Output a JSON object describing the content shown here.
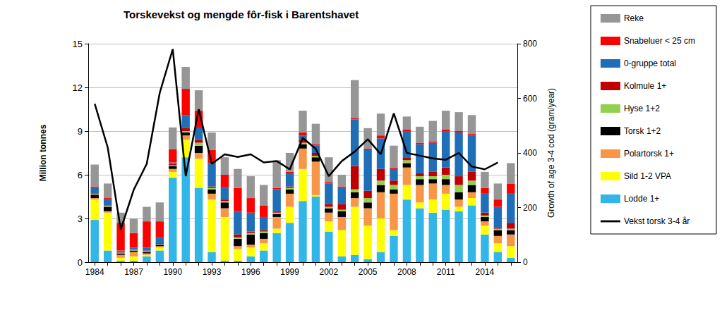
{
  "chart_data": {
    "type": "bar",
    "title": "Torskevekst og mengde fôr-fisk i Barentshavet",
    "y_label": "Million tonnes",
    "y2_label": "Growth of age 3-4 cod (gram/year)",
    "stacked": true,
    "grid": true,
    "legend": "right",
    "categories": [
      "1984",
      null,
      null,
      "1987",
      null,
      null,
      "1990",
      null,
      null,
      "1993",
      null,
      null,
      "1996",
      null,
      null,
      "1999",
      null,
      null,
      "2002",
      null,
      null,
      "2005",
      null,
      null,
      "2008",
      null,
      null,
      "2011",
      null,
      null,
      "2014",
      null,
      null
    ],
    "ylim": [
      0,
      15
    ],
    "yticks": [
      0,
      3,
      6,
      9,
      12,
      15
    ],
    "y2lim": [
      0,
      800
    ],
    "y2ticks": [
      0,
      200,
      400,
      600,
      800
    ],
    "series": [
      {
        "name": "Lodde 1+",
        "color": "#31b6e7",
        "values": [
          2.9,
          0.8,
          0.1,
          0.1,
          0.4,
          0.8,
          5.8,
          7.2,
          5.1,
          0.7,
          0.1,
          0.1,
          0.4,
          0.8,
          2.0,
          2.7,
          4.2,
          4.5,
          2.1,
          0.4,
          0.5,
          0.2,
          0.7,
          1.8,
          4.3,
          3.7,
          3.4,
          3.6,
          3.5,
          3.9,
          1.9,
          0.7,
          0.3
        ]
      },
      {
        "name": "Sild 1-2 VPA",
        "color": "#ffff00",
        "values": [
          1.4,
          2.6,
          0.2,
          0.3,
          0.1,
          0.2,
          0.4,
          1.2,
          2.0,
          3.6,
          3.0,
          0.8,
          0.6,
          0.5,
          0.3,
          1.1,
          2.2,
          0.1,
          0.7,
          1.8,
          3.3,
          2.3,
          2.3,
          0.4,
          1.0,
          0.4,
          0.9,
          1.1,
          0.3,
          0.5,
          0.6,
          0.6,
          0.8
        ]
      },
      {
        "name": "Polartorsk 1+",
        "color": "#f79646",
        "values": [
          0.1,
          0.1,
          0.2,
          0.3,
          0.1,
          0.1,
          0.2,
          0.3,
          0.4,
          0.4,
          0.6,
          0.2,
          0.2,
          0.3,
          0.8,
          0.9,
          1.4,
          2.3,
          0.6,
          0.9,
          0.6,
          1.2,
          1.8,
          2.5,
          1.2,
          1.2,
          1.1,
          0.6,
          0.5,
          0.4,
          0.3,
          0.5,
          0.8
        ]
      },
      {
        "name": "Torsk 1+2",
        "color": "#000000",
        "values": [
          0.2,
          0.3,
          0.1,
          0.1,
          0.1,
          0.1,
          0.2,
          0.2,
          0.5,
          0.3,
          0.4,
          0.5,
          0.7,
          0.4,
          0.2,
          0.3,
          0.3,
          0.3,
          0.3,
          0.4,
          0.4,
          0.4,
          0.5,
          0.3,
          0.3,
          0.4,
          0.3,
          0.4,
          0.5,
          0.5,
          0.3,
          0.4,
          0.3
        ]
      },
      {
        "name": "Hyse 1+2",
        "color": "#92d050",
        "values": [
          0.05,
          0.05,
          0.05,
          0.05,
          0.05,
          0.05,
          0.05,
          0.1,
          0.2,
          0.1,
          0.1,
          0.1,
          0.1,
          0.1,
          0.1,
          0.1,
          0.1,
          0.1,
          0.1,
          0.1,
          0.2,
          0.3,
          0.3,
          0.3,
          0.2,
          0.2,
          0.2,
          0.3,
          0.5,
          0.3,
          0.1,
          0.1,
          0.1
        ]
      },
      {
        "name": "Kolmule 1+",
        "color": "#c00000",
        "values": [
          0.05,
          0.05,
          0.05,
          0.05,
          0.05,
          0.05,
          0.1,
          0.2,
          0.2,
          0.1,
          0.1,
          0.2,
          0.1,
          0.1,
          0.1,
          0.1,
          0.2,
          0.2,
          0.2,
          0.4,
          1.6,
          0.5,
          0.8,
          0.3,
          0.2,
          0.2,
          0.3,
          0.5,
          0.6,
          0.6,
          0.2,
          0.1,
          0.4
        ]
      },
      {
        "name": "0-gruppe total",
        "color": "#1f6eb8",
        "values": [
          0.4,
          0.4,
          0.1,
          0.1,
          0.2,
          0.4,
          0.1,
          0.9,
          0.8,
          1.6,
          0.8,
          1.6,
          1.3,
          0.9,
          1.5,
          0.9,
          0.3,
          0.5,
          1.4,
          1.1,
          3.2,
          2.8,
          2.1,
          0.8,
          1.8,
          2.0,
          2.0,
          2.5,
          3.0,
          2.5,
          1.3,
          1.4,
          2.0
        ]
      },
      {
        "name": "Snabeluer < 25 cm",
        "color": "#ff0000",
        "values": [
          0.1,
          0.1,
          1.9,
          1.0,
          1.8,
          1.1,
          0.9,
          1.8,
          1.2,
          0.9,
          0.9,
          1.6,
          1.0,
          0.8,
          0.1,
          0.1,
          0.2,
          0.1,
          0.1,
          0.1,
          0.1,
          0.1,
          0.2,
          0.1,
          0.1,
          0.1,
          0.1,
          0.1,
          0.1,
          0.1,
          0.4,
          0.5,
          0.7
        ]
      },
      {
        "name": "Reke",
        "color": "#969696",
        "values": [
          1.5,
          1.0,
          0.7,
          1.0,
          1.0,
          1.3,
          1.5,
          1.5,
          1.4,
          1.2,
          1.2,
          1.3,
          1.5,
          1.4,
          1.9,
          1.3,
          1.5,
          1.4,
          1.7,
          0.8,
          2.6,
          1.4,
          1.5,
          1.5,
          0.9,
          1.1,
          1.4,
          1.3,
          1.3,
          1.3,
          1.1,
          1.1,
          1.4
        ]
      },
      {
        "name": "Vekst torsk 3-4 år",
        "type": "line",
        "axis": "y2",
        "color": "#000000",
        "values": [
          580,
          420,
          120,
          265,
          360,
          620,
          780,
          315,
          560,
          360,
          395,
          385,
          395,
          365,
          370,
          340,
          455,
          415,
          315,
          370,
          405,
          450,
          395,
          545,
          400,
          390,
          380,
          375,
          400,
          350,
          340,
          365,
          null
        ]
      }
    ]
  }
}
